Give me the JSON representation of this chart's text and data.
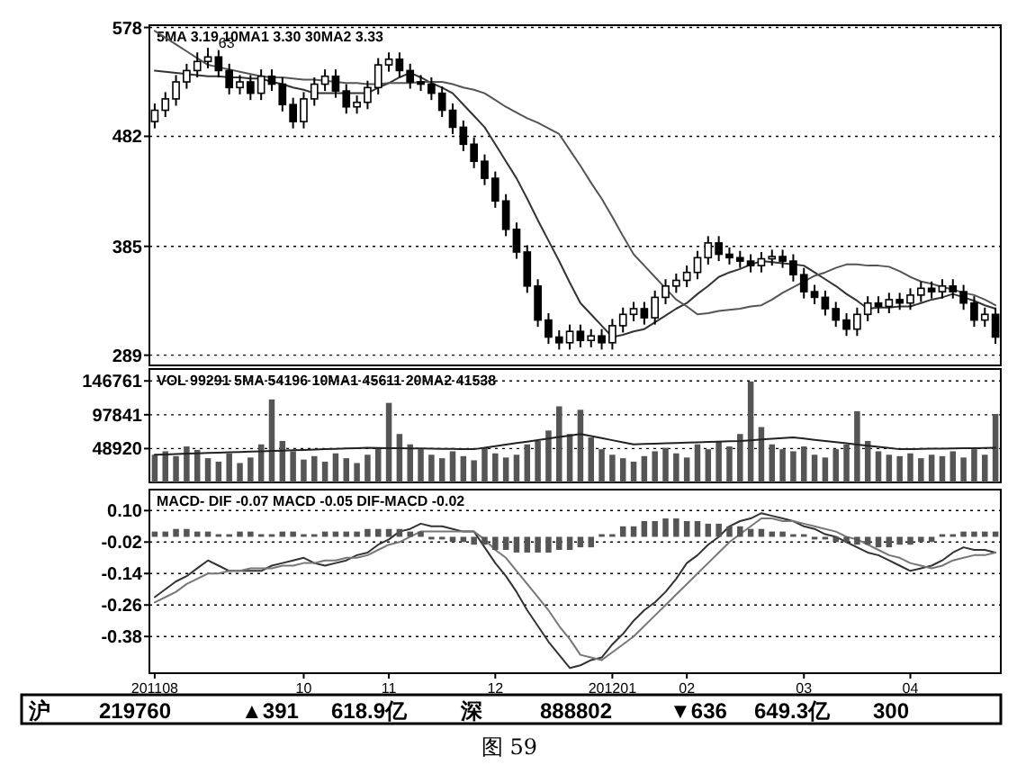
{
  "chart_data": [
    {
      "type": "candlestick",
      "title": "5MA 3.19  10MA1 3.30  30MA2 3.33",
      "color": "#000000",
      "categories": [
        null,
        null,
        null,
        null,
        null,
        null,
        null,
        null,
        null,
        null,
        null,
        null,
        null,
        null,
        null,
        null,
        null,
        null,
        null,
        null,
        null,
        null,
        null,
        null,
        null,
        null,
        null,
        null,
        null,
        null,
        null,
        null,
        null,
        null,
        null,
        null,
        null,
        null,
        null,
        null,
        null,
        null,
        null,
        null,
        null,
        null,
        null,
        null,
        null,
        null,
        null,
        null,
        null,
        null,
        null,
        null,
        null,
        null,
        null,
        null,
        null,
        null,
        null,
        null,
        null,
        null,
        null,
        null,
        null,
        null,
        null,
        null,
        null,
        null,
        null,
        null,
        null,
        null,
        null,
        null
      ],
      "ohlc": [
        [
          495,
          511,
          489,
          505
        ],
        [
          505,
          521,
          499,
          515
        ],
        [
          515,
          536,
          509,
          530
        ],
        [
          530,
          546,
          524,
          540
        ],
        [
          540,
          556,
          534,
          548
        ],
        [
          548,
          560,
          542,
          552
        ],
        [
          552,
          558,
          534,
          540
        ],
        [
          540,
          546,
          519,
          525
        ],
        [
          525,
          536,
          519,
          530
        ],
        [
          530,
          536,
          514,
          520
        ],
        [
          520,
          541,
          514,
          535
        ],
        [
          535,
          541,
          522,
          528
        ],
        [
          528,
          534,
          504,
          510
        ],
        [
          510,
          516,
          489,
          495
        ],
        [
          495,
          521,
          489,
          515
        ],
        [
          515,
          534,
          509,
          528
        ],
        [
          528,
          541,
          522,
          535
        ],
        [
          535,
          541,
          516,
          522
        ],
        [
          522,
          528,
          502,
          508
        ],
        [
          508,
          518,
          502,
          512
        ],
        [
          512,
          531,
          506,
          525
        ],
        [
          525,
          551,
          519,
          545
        ],
        [
          545,
          556,
          539,
          550
        ],
        [
          550,
          556,
          534,
          540
        ],
        [
          540,
          546,
          524,
          530
        ],
        [
          530,
          536,
          522,
          528
        ],
        [
          528,
          534,
          514,
          520
        ],
        [
          520,
          526,
          499,
          505
        ],
        [
          505,
          511,
          484,
          490
        ],
        [
          490,
          496,
          469,
          475
        ],
        [
          475,
          481,
          454,
          460
        ],
        [
          460,
          466,
          439,
          445
        ],
        [
          445,
          451,
          419,
          425
        ],
        [
          425,
          431,
          394,
          400
        ],
        [
          400,
          406,
          374,
          380
        ],
        [
          380,
          386,
          344,
          350
        ],
        [
          350,
          356,
          314,
          320
        ],
        [
          320,
          326,
          299,
          305
        ],
        [
          305,
          311,
          294,
          300
        ],
        [
          300,
          316,
          294,
          310
        ],
        [
          310,
          316,
          296,
          302
        ],
        [
          302,
          312,
          296,
          306
        ],
        [
          306,
          312,
          294,
          300
        ],
        [
          300,
          321,
          294,
          315
        ],
        [
          315,
          331,
          309,
          325
        ],
        [
          325,
          336,
          319,
          330
        ],
        [
          330,
          336,
          316,
          322
        ],
        [
          322,
          346,
          316,
          340
        ],
        [
          340,
          356,
          334,
          350
        ],
        [
          350,
          361,
          344,
          355
        ],
        [
          355,
          368,
          349,
          362
        ],
        [
          362,
          381,
          356,
          375
        ],
        [
          375,
          394,
          369,
          388
        ],
        [
          388,
          394,
          372,
          378
        ],
        [
          378,
          384,
          369,
          375
        ],
        [
          375,
          381,
          366,
          372
        ],
        [
          372,
          378,
          362,
          368
        ],
        [
          368,
          380,
          362,
          374
        ],
        [
          374,
          382,
          368,
          376
        ],
        [
          376,
          382,
          366,
          372
        ],
        [
          372,
          378,
          354,
          360
        ],
        [
          360,
          366,
          339,
          345
        ],
        [
          345,
          351,
          334,
          340
        ],
        [
          340,
          346,
          324,
          330
        ],
        [
          330,
          336,
          314,
          320
        ],
        [
          320,
          326,
          306,
          312
        ],
        [
          312,
          331,
          306,
          325
        ],
        [
          325,
          341,
          319,
          335
        ],
        [
          335,
          341,
          326,
          332
        ],
        [
          332,
          344,
          326,
          338
        ],
        [
          338,
          344,
          329,
          335
        ],
        [
          335,
          348,
          329,
          342
        ],
        [
          342,
          354,
          336,
          348
        ],
        [
          348,
          354,
          339,
          345
        ],
        [
          345,
          356,
          339,
          350
        ],
        [
          350,
          356,
          339,
          345
        ],
        [
          345,
          351,
          329,
          335
        ],
        [
          335,
          341,
          314,
          320
        ],
        [
          320,
          331,
          314,
          325
        ],
        [
          325,
          331,
          299,
          305
        ]
      ],
      "series": [
        {
          "type": "line",
          "color": "#333333",
          "values": [
            540,
            539,
            538,
            537,
            536,
            535,
            535,
            534,
            534,
            533,
            533,
            530,
            528,
            525,
            523,
            520,
            520,
            520,
            520,
            520,
            520,
            525,
            529,
            534,
            538,
            534,
            529,
            525,
            520,
            510,
            500,
            490,
            475,
            460,
            445,
            427,
            408,
            390,
            372,
            353,
            335,
            325,
            315,
            305,
            307,
            310,
            312,
            318,
            324,
            330,
            335,
            343,
            350,
            358,
            362,
            365,
            369,
            372,
            371,
            370,
            369,
            368,
            362,
            356,
            350,
            343,
            337,
            330,
            331,
            331,
            332,
            332,
            335,
            338,
            340,
            343,
            340,
            337,
            333,
            330
          ]
        },
        {
          "type": "line",
          "color": "#555555",
          "values": [
            575,
            569,
            563,
            557,
            551,
            545,
            543,
            541,
            539,
            537,
            535,
            534,
            534,
            533,
            532,
            532,
            531,
            530,
            529,
            529,
            528,
            528,
            529,
            529,
            529,
            530,
            530,
            530,
            528,
            525,
            523,
            520,
            514,
            508,
            503,
            498,
            494,
            489,
            484,
            470,
            456,
            441,
            427,
            411,
            394,
            378,
            368,
            358,
            348,
            338,
            332,
            325,
            326,
            328,
            329,
            330,
            332,
            333,
            338,
            344,
            349,
            354,
            359,
            362,
            366,
            369,
            369,
            368,
            368,
            367,
            363,
            358,
            354,
            352,
            349,
            347,
            344,
            342,
            338,
            333
          ]
        }
      ],
      "annotations": [
        {
          "text": "63",
          "y": 560
        }
      ],
      "ylim": [
        280,
        580
      ],
      "yticks": [
        {
          "value": 289,
          "label": "289"
        },
        {
          "value": 385,
          "label": "385"
        },
        {
          "value": 482,
          "label": "482"
        },
        {
          "value": 578,
          "label": "578"
        }
      ],
      "grid": "y",
      "tick_labels": "y"
    },
    {
      "type": "bar",
      "title": "VOL 99291  5MA 54196  10MA1 45611  20MA2 41538",
      "color": "#555555",
      "categories": [
        null,
        null,
        null,
        null,
        null,
        null,
        null,
        null,
        null,
        null,
        null,
        null,
        null,
        null,
        null,
        null,
        null,
        null,
        null,
        null,
        null,
        null,
        null,
        null,
        null,
        null,
        null,
        null,
        null,
        null,
        null,
        null,
        null,
        null,
        null,
        null,
        null,
        null,
        null,
        null,
        null,
        null,
        null,
        null,
        null,
        null,
        null,
        null,
        null,
        null,
        null,
        null,
        null,
        null,
        null,
        null,
        null,
        null,
        null,
        null,
        null,
        null,
        null,
        null,
        null,
        null,
        null,
        null,
        null,
        null,
        null,
        null,
        null,
        null,
        null,
        null,
        null,
        null,
        null,
        null
      ],
      "values": [
        40000,
        45000,
        38000,
        52000,
        47000,
        35000,
        30000,
        42000,
        28000,
        36000,
        55000,
        120000,
        60000,
        45000,
        33000,
        38000,
        30000,
        42000,
        35000,
        28000,
        40000,
        50000,
        115000,
        70000,
        55000,
        48000,
        40000,
        35000,
        45000,
        38000,
        32000,
        50000,
        42000,
        36000,
        40000,
        55000,
        60000,
        75000,
        110000,
        70000,
        105000,
        65000,
        48000,
        40000,
        35000,
        30000,
        38000,
        45000,
        50000,
        42000,
        36000,
        55000,
        48000,
        60000,
        52000,
        70000,
        146000,
        80000,
        55000,
        48000,
        45000,
        52000,
        40000,
        36000,
        48000,
        55000,
        103000,
        60000,
        45000,
        40000,
        38000,
        42000,
        35000,
        40000,
        38000,
        45000,
        36000,
        48000,
        40000,
        99000
      ],
      "series": [
        {
          "type": "line",
          "color": "#222222",
          "values": [
            40000,
            40500,
            41000,
            41500,
            42000,
            42500,
            43000,
            43500,
            44000,
            44500,
            45000,
            45500,
            46000,
            46500,
            47000,
            47500,
            48000,
            48500,
            49000,
            49500,
            50000,
            49800,
            49600,
            49400,
            49200,
            49000,
            48800,
            48600,
            48400,
            48200,
            48000,
            50200,
            52400,
            54600,
            56800,
            59000,
            61200,
            63400,
            65600,
            67800,
            70000,
            67000,
            64000,
            61000,
            58000,
            55000,
            55500,
            56000,
            56500,
            57000,
            57500,
            58000,
            58500,
            59000,
            59500,
            60000,
            61000,
            62000,
            63000,
            64000,
            65000,
            63300,
            61600,
            59900,
            58200,
            56500,
            54800,
            53100,
            51400,
            49700,
            48000,
            48200,
            48400,
            48700,
            48900,
            49100,
            49300,
            49600,
            49800,
            50000
          ]
        }
      ],
      "ylim": [
        0,
        164000
      ],
      "yticks": [
        48920,
        97841,
        146761
      ],
      "grid": "y",
      "tick_labels": "y"
    },
    {
      "type": "line",
      "title": "MACD- DIF -0.07  MACD -0.05  DIF-MACD -0.02",
      "categories": [
        "201108",
        null,
        null,
        null,
        null,
        null,
        null,
        null,
        null,
        null,
        null,
        null,
        null,
        null,
        "10",
        null,
        null,
        null,
        null,
        null,
        null,
        null,
        "11",
        null,
        null,
        null,
        null,
        null,
        null,
        null,
        null,
        null,
        "12",
        null,
        null,
        null,
        null,
        null,
        null,
        null,
        null,
        null,
        null,
        "201201",
        null,
        null,
        null,
        null,
        null,
        null,
        "02",
        null,
        null,
        null,
        null,
        null,
        null,
        null,
        null,
        null,
        null,
        "03",
        null,
        null,
        null,
        null,
        null,
        null,
        null,
        null,
        null,
        "04",
        null,
        null,
        null,
        null,
        null,
        null,
        null,
        null
      ],
      "series": [
        {
          "type": "line",
          "color": "#333333",
          "values": [
            -0.23,
            -0.2,
            -0.17,
            -0.15,
            -0.12,
            -0.09,
            -0.11,
            -0.13,
            -0.13,
            -0.13,
            -0.13,
            -0.11,
            -0.1,
            -0.09,
            -0.08,
            -0.1,
            -0.11,
            -0.1,
            -0.09,
            -0.07,
            -0.06,
            -0.03,
            -0.01,
            0.02,
            0.03,
            0.05,
            0.04,
            0.04,
            0.03,
            0.02,
            0.02,
            -0.04,
            -0.1,
            -0.15,
            -0.21,
            -0.28,
            -0.34,
            -0.4,
            -0.45,
            -0.5,
            -0.49,
            -0.47,
            -0.46,
            -0.41,
            -0.37,
            -0.32,
            -0.28,
            -0.25,
            -0.21,
            -0.16,
            -0.1,
            -0.07,
            -0.03,
            0.0,
            0.04,
            0.06,
            0.07,
            0.09,
            0.08,
            0.07,
            0.06,
            0.04,
            0.03,
            0.01,
            0.0,
            -0.02,
            -0.04,
            -0.06,
            -0.07,
            -0.09,
            -0.11,
            -0.13,
            -0.12,
            -0.11,
            -0.09,
            -0.06,
            -0.04,
            -0.05,
            -0.05,
            -0.06
          ]
        },
        {
          "type": "line",
          "color": "#777777",
          "values": [
            -0.25,
            -0.23,
            -0.21,
            -0.18,
            -0.16,
            -0.14,
            -0.14,
            -0.13,
            -0.13,
            -0.12,
            -0.12,
            -0.12,
            -0.11,
            -0.11,
            -0.1,
            -0.1,
            -0.09,
            -0.09,
            -0.08,
            -0.08,
            -0.07,
            -0.05,
            -0.03,
            -0.02,
            0.0,
            0.02,
            0.02,
            0.02,
            0.02,
            0.02,
            0.02,
            -0.01,
            -0.05,
            -0.08,
            -0.13,
            -0.18,
            -0.23,
            -0.28,
            -0.34,
            -0.39,
            -0.45,
            -0.46,
            -0.47,
            -0.44,
            -0.41,
            -0.38,
            -0.34,
            -0.3,
            -0.26,
            -0.22,
            -0.18,
            -0.14,
            -0.1,
            -0.06,
            -0.02,
            0.01,
            0.04,
            0.07,
            0.07,
            0.06,
            0.06,
            0.05,
            0.04,
            0.03,
            0.02,
            0.0,
            -0.01,
            -0.03,
            -0.05,
            -0.07,
            -0.08,
            -0.1,
            -0.11,
            -0.12,
            -0.11,
            -0.09,
            -0.08,
            -0.07,
            -0.07,
            -0.06
          ]
        },
        {
          "type": "bar",
          "color": "#555555",
          "values": [
            0.02,
            0.02,
            0.03,
            0.03,
            0.02,
            0.02,
            0.01,
            0.01,
            0.02,
            0.02,
            0.01,
            0.01,
            0.02,
            0.02,
            0.01,
            0.01,
            0.02,
            0.02,
            0.02,
            0.02,
            0.03,
            0.03,
            0.03,
            0.03,
            0.02,
            0.02,
            -0.01,
            -0.01,
            -0.02,
            -0.02,
            -0.03,
            -0.03,
            -0.05,
            -0.05,
            -0.06,
            -0.06,
            -0.06,
            -0.06,
            -0.05,
            -0.05,
            -0.04,
            -0.04,
            0.01,
            0.01,
            0.04,
            0.04,
            0.06,
            0.06,
            0.07,
            0.07,
            0.06,
            0.06,
            0.05,
            0.05,
            0.04,
            0.04,
            0.03,
            0.03,
            0.02,
            0.02,
            0.01,
            0.01,
            -0.01,
            -0.01,
            -0.02,
            -0.02,
            -0.03,
            -0.03,
            -0.04,
            -0.04,
            -0.03,
            -0.03,
            -0.02,
            -0.02,
            0.01,
            0.01,
            0.02,
            0.02,
            0.02,
            0.02
          ]
        }
      ],
      "ylim": [
        -0.52,
        0.18
      ],
      "yticks": [
        {
          "value": -0.38,
          "label": "-0.38"
        },
        {
          "value": -0.26,
          "label": "-0.26"
        },
        {
          "value": -0.14,
          "label": "-0.14"
        },
        {
          "value": -0.02,
          "label": "-0.02"
        },
        {
          "value": 0.1,
          "label": "0.10"
        }
      ],
      "grid": "y"
    },
    {
      "type": "other",
      "annotations": [
        "沪",
        "219760",
        "▲391",
        "618.9亿",
        "深",
        "888802",
        "▼636",
        "649.3亿",
        "300",
        "图 59"
      ]
    }
  ]
}
